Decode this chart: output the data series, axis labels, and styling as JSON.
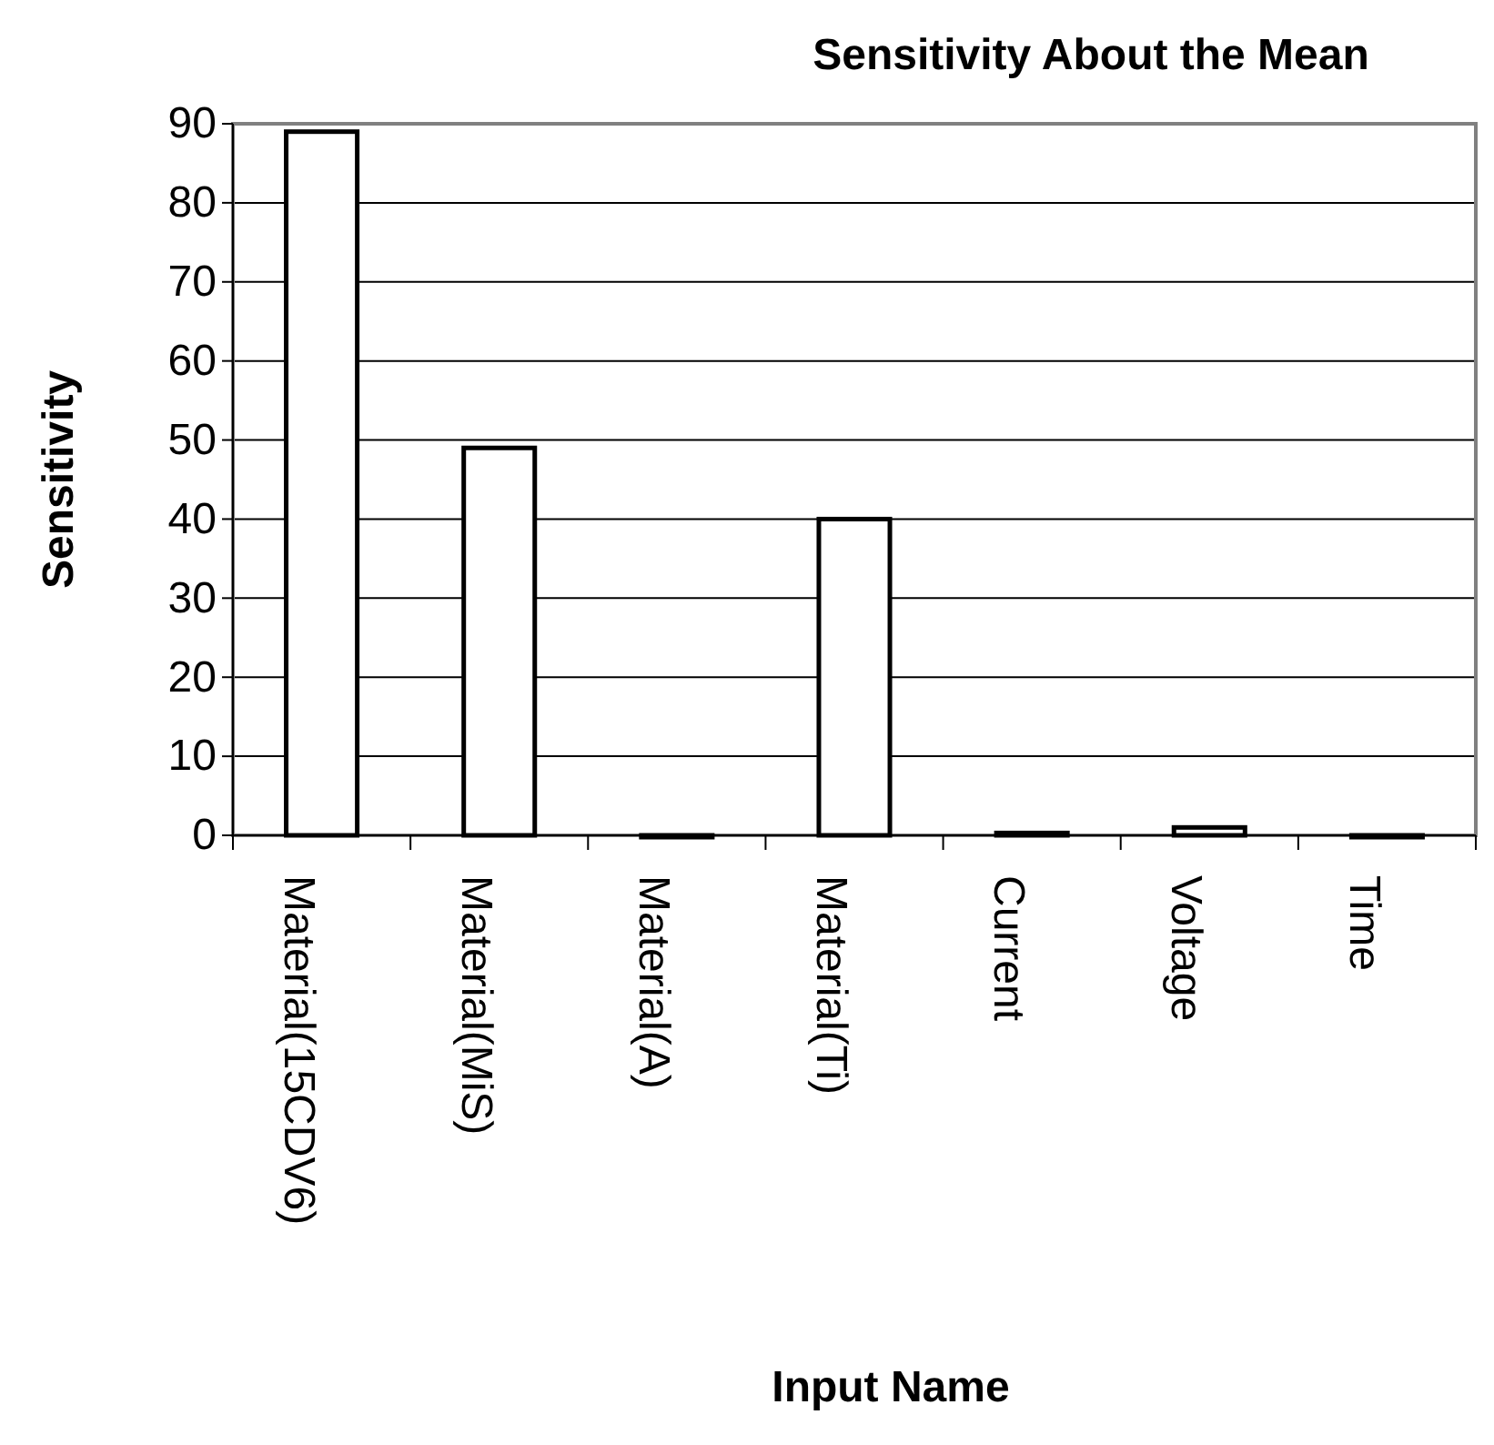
{
  "chart_data": {
    "type": "bar",
    "title": "Sensitivity About the Mean",
    "xlabel": "Input Name",
    "ylabel": "Sensitivity",
    "categories": [
      "Material(15CDV6)",
      "Material(MiS)",
      "Material(A)",
      "Material(Ti)",
      "Current",
      "Voltage",
      "Time"
    ],
    "values": [
      89,
      49,
      0,
      40,
      0.3,
      1,
      0
    ],
    "color": "#ffffff",
    "ylim": [
      0,
      90
    ],
    "yticks": [
      0,
      10,
      20,
      30,
      40,
      50,
      60,
      70,
      80,
      90
    ],
    "grid": "y"
  }
}
